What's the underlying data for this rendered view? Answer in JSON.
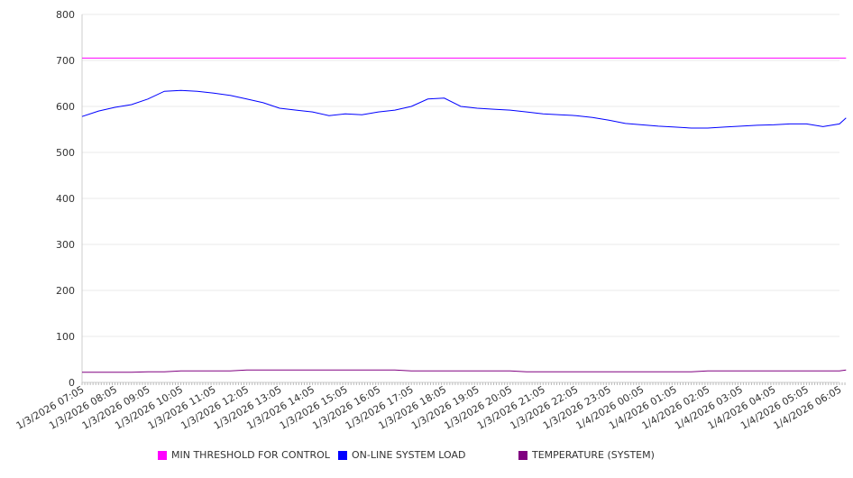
{
  "chart_data": {
    "type": "line",
    "title": "",
    "xlabel": "",
    "ylabel": "",
    "ylim": [
      0,
      800
    ],
    "yticks": [
      "0",
      "100",
      "200",
      "300",
      "400",
      "500",
      "600",
      "700",
      "800"
    ],
    "xtick_labels": [
      "1/3/2026 07:05",
      "1/3/2026 08:05",
      "1/3/2026 09:05",
      "1/3/2026 10:05",
      "1/3/2026 11:05",
      "1/3/2026 12:05",
      "1/3/2026 13:05",
      "1/3/2026 14:05",
      "1/3/2026 15:05",
      "1/3/2026 16:05",
      "1/3/2026 17:05",
      "1/3/2026 18:05",
      "1/3/2026 19:05",
      "1/3/2026 20:05",
      "1/3/2026 21:05",
      "1/3/2026 22:05",
      "1/3/2026 23:05",
      "1/4/2026 00:05",
      "1/4/2026 01:05",
      "1/4/2026 02:05",
      "1/4/2026 03:05",
      "1/4/2026 04:05",
      "1/4/2026 05:05",
      "1/4/2026 06:05"
    ],
    "x_hours_from_start": [
      0,
      0.5,
      1,
      1.5,
      2,
      2.5,
      3,
      3.5,
      4,
      4.5,
      5,
      5.5,
      6,
      6.5,
      7,
      7.5,
      8,
      8.5,
      9,
      9.5,
      10,
      10.5,
      11,
      11.5,
      12,
      12.5,
      13,
      13.5,
      14,
      14.5,
      15,
      15.5,
      16,
      16.5,
      17,
      17.5,
      18,
      18.5,
      19,
      19.5,
      20,
      20.5,
      21,
      21.5,
      22,
      22.5,
      23,
      23.2
    ],
    "series": [
      {
        "name": "MIN THRESHOLD FOR CONTROL",
        "color": "#FF00FF",
        "values": [
          705,
          705,
          705,
          705,
          705,
          705,
          705,
          705,
          705,
          705,
          705,
          705,
          705,
          705,
          705,
          705,
          705,
          705,
          705,
          705,
          705,
          705,
          705,
          705,
          705,
          705,
          705,
          705,
          705,
          705,
          705,
          705,
          705,
          705,
          705,
          705,
          705,
          705,
          705,
          705,
          705,
          705,
          705,
          705,
          705,
          705,
          705,
          705
        ]
      },
      {
        "name": "ON-LINE SYSTEM LOAD",
        "color": "#0000FF",
        "values": [
          578,
          590,
          598,
          604,
          616,
          633,
          635,
          633,
          629,
          624,
          616,
          608,
          596,
          592,
          588,
          580,
          584,
          582,
          588,
          592,
          600,
          616,
          618,
          600,
          596,
          594,
          592,
          588,
          584,
          582,
          580,
          576,
          570,
          563,
          560,
          557,
          555,
          553,
          553,
          555,
          557,
          559,
          560,
          562,
          562,
          556,
          562,
          575
        ]
      },
      {
        "name": "TEMPERATURE (SYSTEM)",
        "color": "#800080",
        "values": [
          22,
          22,
          22,
          22,
          23,
          23,
          25,
          25,
          25,
          25,
          27,
          27,
          27,
          27,
          27,
          27,
          27,
          27,
          27,
          27,
          25,
          25,
          25,
          25,
          25,
          25,
          25,
          23,
          23,
          23,
          23,
          23,
          23,
          23,
          23,
          23,
          23,
          23,
          25,
          25,
          25,
          25,
          25,
          25,
          25,
          25,
          25,
          27
        ]
      }
    ],
    "legend_position": "bottom",
    "grid": true
  }
}
